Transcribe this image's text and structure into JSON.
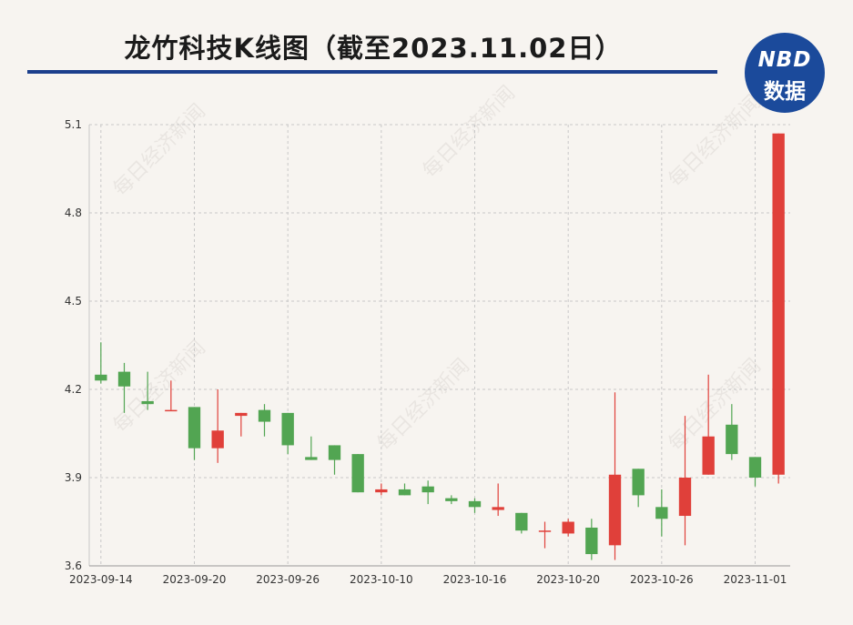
{
  "title": "龙竹科技K线图（截至2023.11.02日）",
  "logo": {
    "line1": "NBD",
    "line2": "数据"
  },
  "watermark": "每日经济新闻",
  "colors": {
    "up": "#e0403a",
    "down": "#52a552",
    "grid": "#c8c8c8",
    "title_rule": "#1c3f8c",
    "logo_bg": "#1b4a9b"
  },
  "chart_data": {
    "type": "candlestick",
    "title": "龙竹科技K线图（截至2023.11.02日）",
    "ylim": [
      3.6,
      5.1
    ],
    "y_ticks": [
      "3.6",
      "3.9",
      "4.2",
      "4.5",
      "4.8",
      "5.1"
    ],
    "x_tick_labels": [
      "2023-09-14",
      "2023-09-20",
      "2023-09-26",
      "2023-10-10",
      "2023-10-16",
      "2023-10-20",
      "2023-10-26",
      "2023-11-01"
    ],
    "grid": true,
    "candles": [
      {
        "date": "2023-09-14",
        "open": 4.25,
        "close": 4.23,
        "high": 4.36,
        "low": 4.22
      },
      {
        "date": "2023-09-15",
        "open": 4.26,
        "close": 4.21,
        "high": 4.29,
        "low": 4.12
      },
      {
        "date": "2023-09-18",
        "open": 4.16,
        "close": 4.15,
        "high": 4.26,
        "low": 4.13
      },
      {
        "date": "2023-09-19",
        "open": 4.13,
        "close": 4.13,
        "high": 4.23,
        "low": 4.13
      },
      {
        "date": "2023-09-20",
        "open": 4.14,
        "close": 4.0,
        "high": 4.14,
        "low": 3.96
      },
      {
        "date": "2023-09-21",
        "open": 4.0,
        "close": 4.06,
        "high": 4.2,
        "low": 3.95
      },
      {
        "date": "2023-09-22",
        "open": 4.11,
        "close": 4.12,
        "high": 4.12,
        "low": 4.04
      },
      {
        "date": "2023-09-25",
        "open": 4.13,
        "close": 4.09,
        "high": 4.15,
        "low": 4.04
      },
      {
        "date": "2023-09-26",
        "open": 4.12,
        "close": 4.01,
        "high": 4.12,
        "low": 3.98
      },
      {
        "date": "2023-09-27",
        "open": 3.97,
        "close": 3.96,
        "high": 4.04,
        "low": 3.96
      },
      {
        "date": "2023-09-28",
        "open": 4.01,
        "close": 3.96,
        "high": 4.01,
        "low": 3.91
      },
      {
        "date": "2023-10-09",
        "open": 3.98,
        "close": 3.85,
        "high": 3.98,
        "low": 3.85
      },
      {
        "date": "2023-10-10",
        "open": 3.85,
        "close": 3.86,
        "high": 3.88,
        "low": 3.84
      },
      {
        "date": "2023-10-11",
        "open": 3.86,
        "close": 3.84,
        "high": 3.88,
        "low": 3.84
      },
      {
        "date": "2023-10-12",
        "open": 3.87,
        "close": 3.85,
        "high": 3.89,
        "low": 3.81
      },
      {
        "date": "2023-10-13",
        "open": 3.83,
        "close": 3.82,
        "high": 3.84,
        "low": 3.81
      },
      {
        "date": "2023-10-16",
        "open": 3.82,
        "close": 3.8,
        "high": 3.83,
        "low": 3.78
      },
      {
        "date": "2023-10-17",
        "open": 3.79,
        "close": 3.8,
        "high": 3.88,
        "low": 3.77
      },
      {
        "date": "2023-10-18",
        "open": 3.78,
        "close": 3.72,
        "high": 3.78,
        "low": 3.71
      },
      {
        "date": "2023-10-19",
        "open": 3.72,
        "close": 3.72,
        "high": 3.75,
        "low": 3.66
      },
      {
        "date": "2023-10-20",
        "open": 3.71,
        "close": 3.75,
        "high": 3.76,
        "low": 3.7
      },
      {
        "date": "2023-10-23",
        "open": 3.73,
        "close": 3.64,
        "high": 3.76,
        "low": 3.62
      },
      {
        "date": "2023-10-24",
        "open": 3.67,
        "close": 3.91,
        "high": 4.19,
        "low": 3.62
      },
      {
        "date": "2023-10-25",
        "open": 3.93,
        "close": 3.84,
        "high": 3.93,
        "low": 3.8
      },
      {
        "date": "2023-10-26",
        "open": 3.8,
        "close": 3.76,
        "high": 3.86,
        "low": 3.7
      },
      {
        "date": "2023-10-27",
        "open": 3.77,
        "close": 3.9,
        "high": 4.11,
        "low": 3.67
      },
      {
        "date": "2023-10-30",
        "open": 3.91,
        "close": 4.04,
        "high": 4.25,
        "low": 3.91
      },
      {
        "date": "2023-10-31",
        "open": 4.08,
        "close": 3.98,
        "high": 4.15,
        "low": 3.96
      },
      {
        "date": "2023-11-01",
        "open": 3.97,
        "close": 3.9,
        "high": 3.97,
        "low": 3.87
      },
      {
        "date": "2023-11-02",
        "open": 3.91,
        "close": 5.07,
        "high": 5.07,
        "low": 3.88
      }
    ]
  }
}
